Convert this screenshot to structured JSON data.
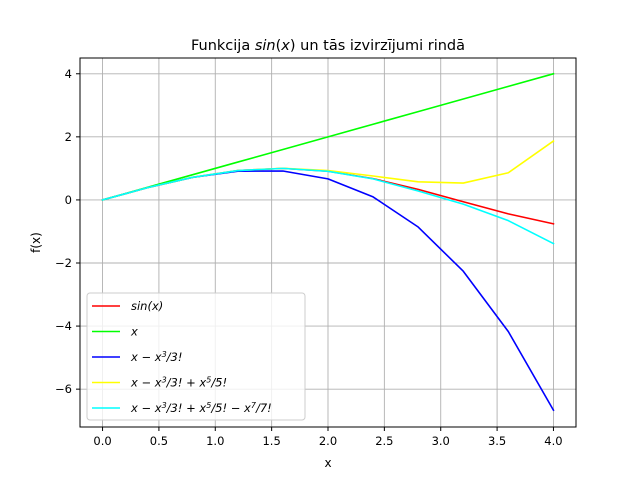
{
  "chart_data": {
    "type": "line",
    "title": "Funkcija sin(x) un tās izvirzījumi rindā",
    "xlabel": "x",
    "ylabel": "f(x)",
    "xlim": [
      -0.2,
      4.2
    ],
    "ylim": [
      -7.2,
      4.5
    ],
    "grid": true,
    "legend_position": "lower-left",
    "x_ticks": [
      0.0,
      0.5,
      1.0,
      1.5,
      2.0,
      2.5,
      3.0,
      3.5,
      4.0
    ],
    "x_tick_labels": [
      "0.0",
      "0.5",
      "1.0",
      "1.5",
      "2.0",
      "2.5",
      "3.0",
      "3.5",
      "4.0"
    ],
    "y_ticks": [
      -6,
      -4,
      -2,
      0,
      2,
      4
    ],
    "y_tick_labels": [
      "−6",
      "−4",
      "−2",
      "0",
      "2",
      "4"
    ],
    "x": [
      0,
      0.4,
      0.8,
      1.2,
      1.6,
      2.0,
      2.4,
      2.8,
      3.2,
      3.6,
      4.0
    ],
    "series": [
      {
        "name": "sin(x)",
        "color": "#ff0000",
        "values": [
          0,
          0.389,
          0.717,
          0.932,
          1.0,
          0.909,
          0.675,
          0.335,
          -0.058,
          -0.443,
          -0.757
        ]
      },
      {
        "name": "x",
        "color": "#00ff00",
        "values": [
          0,
          0.4,
          0.8,
          1.2,
          1.6,
          2.0,
          2.4,
          2.8,
          3.2,
          3.6,
          4.0
        ]
      },
      {
        "name": "x − x³/3!",
        "color": "#0000ff",
        "values": [
          0,
          0.389,
          0.715,
          0.912,
          0.917,
          0.667,
          0.096,
          -0.859,
          -2.261,
          -4.176,
          -6.667
        ]
      },
      {
        "name": "x − x³/3! + x⁵/5!",
        "color": "#ffff00",
        "values": [
          0,
          0.389,
          0.717,
          0.933,
          1.004,
          0.933,
          0.759,
          0.575,
          0.535,
          0.862,
          1.867
        ]
      },
      {
        "name": "x − x³/3! + x⁵/5! − x⁷/7!",
        "color": "#00ffff",
        "values": [
          0,
          0.389,
          0.717,
          0.932,
          1.0,
          0.908,
          0.667,
          0.282,
          -0.132,
          -0.658,
          -1.384
        ]
      }
    ]
  }
}
